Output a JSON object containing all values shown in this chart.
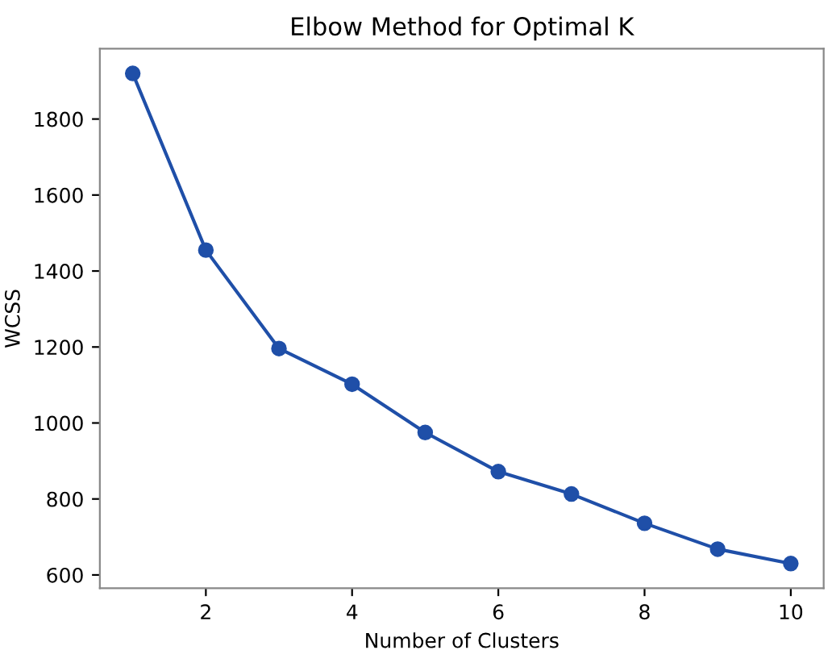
{
  "chart_data": {
    "type": "line",
    "title": "Elbow Method for Optimal K",
    "xlabel": "Number of Clusters",
    "ylabel": "WCSS",
    "x": [
      1,
      2,
      3,
      4,
      5,
      6,
      7,
      8,
      9,
      10
    ],
    "series": [
      {
        "color": "#1f4fa8",
        "values": [
          1920,
          1455,
          1196,
          1102,
          975,
          872,
          813,
          736,
          668,
          630
        ]
      }
    ],
    "xlim": [
      0.55,
      10.45
    ],
    "xticks": [
      2,
      4,
      6,
      8,
      10
    ],
    "ylim": [
      565,
      1985
    ],
    "yticks": [
      600,
      800,
      1000,
      1200,
      1400,
      1600,
      1800
    ],
    "marker": "circle",
    "line_style": "solid",
    "grid": false,
    "legend": false
  }
}
